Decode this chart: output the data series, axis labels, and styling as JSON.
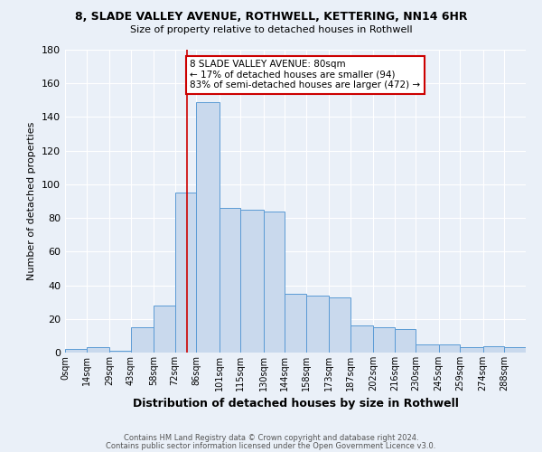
{
  "title": "8, SLADE VALLEY AVENUE, ROTHWELL, KETTERING, NN14 6HR",
  "subtitle": "Size of property relative to detached houses in Rothwell",
  "xlabel": "Distribution of detached houses by size in Rothwell",
  "ylabel": "Number of detached properties",
  "footnote1": "Contains HM Land Registry data © Crown copyright and database right 2024.",
  "footnote2": "Contains public sector information licensed under the Open Government Licence v3.0.",
  "bar_labels": [
    "0sqm",
    "14sqm",
    "29sqm",
    "43sqm",
    "58sqm",
    "72sqm",
    "86sqm",
    "101sqm",
    "115sqm",
    "130sqm",
    "144sqm",
    "158sqm",
    "173sqm",
    "187sqm",
    "202sqm",
    "216sqm",
    "230sqm",
    "245sqm",
    "259sqm",
    "274sqm",
    "288sqm"
  ],
  "bar_heights": [
    2,
    3,
    1,
    15,
    28,
    95,
    149,
    86,
    85,
    84,
    35,
    34,
    33,
    16,
    15,
    14,
    5,
    5,
    3,
    4,
    3
  ],
  "bin_edges": [
    0,
    14,
    29,
    43,
    58,
    72,
    86,
    101,
    115,
    130,
    144,
    158,
    173,
    187,
    202,
    216,
    230,
    245,
    259,
    274,
    288,
    302
  ],
  "bar_color": "#c9d9ed",
  "bar_edge_color": "#5b9bd5",
  "background_color": "#eaf0f8",
  "grid_color": "#ffffff",
  "vline_x": 80,
  "vline_color": "#cc0000",
  "annotation_title": "8 SLADE VALLEY AVENUE: 80sqm",
  "annotation_line1": "← 17% of detached houses are smaller (94)",
  "annotation_line2": "83% of semi-detached houses are larger (472) →",
  "annotation_box_color": "#ffffff",
  "annotation_box_edge": "#cc0000",
  "ylim": [
    0,
    180
  ],
  "yticks": [
    0,
    20,
    40,
    60,
    80,
    100,
    120,
    140,
    160,
    180
  ],
  "property_sqm": 80
}
